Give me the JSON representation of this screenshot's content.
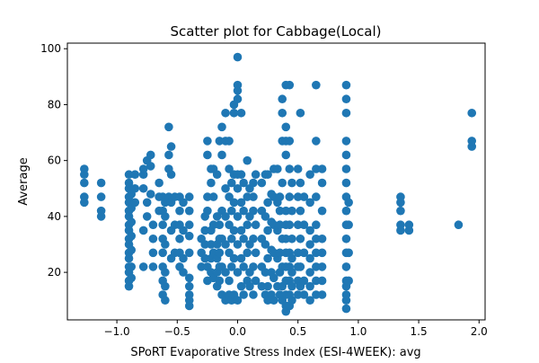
{
  "chart_data": {
    "type": "scatter",
    "title": "Scatter plot for Cabbage(Local)",
    "xlabel": "SPoRT Evaporative Stress Index (ESI-4WEEK): avg",
    "ylabel": "Average",
    "xlim": [
      -1.41,
      2.05
    ],
    "ylim": [
      3,
      102
    ],
    "xticks": [
      -1.0,
      -0.5,
      0.0,
      0.5,
      1.0,
      1.5,
      2.0
    ],
    "xtick_labels": [
      "−1.0",
      "−0.5",
      "0.0",
      "0.5",
      "1.0",
      "1.5",
      "2.0"
    ],
    "yticks": [
      20,
      40,
      60,
      80,
      100
    ],
    "ytick_labels": [
      "20",
      "40",
      "60",
      "80",
      "100"
    ],
    "grid": false,
    "legend": "none",
    "color": "#1f77b4",
    "columns": [
      {
        "x": -1.27,
        "y": [
          45,
          47,
          52,
          55,
          57
        ]
      },
      {
        "x": -1.13,
        "y": [
          40,
          42,
          47,
          52
        ]
      },
      {
        "x": -0.9,
        "y": [
          15,
          17,
          20,
          22,
          25,
          27,
          30,
          32,
          35,
          37,
          40,
          42,
          45,
          47,
          50,
          52,
          55
        ]
      },
      {
        "x": -0.88,
        "y": [
          18,
          22,
          28,
          33,
          38,
          43,
          48
        ]
      },
      {
        "x": -0.85,
        "y": [
          45,
          50,
          55
        ]
      },
      {
        "x": -0.78,
        "y": [
          22,
          35,
          50,
          55,
          57
        ]
      },
      {
        "x": -0.75,
        "y": [
          40,
          45,
          60
        ]
      },
      {
        "x": -0.72,
        "y": [
          48,
          58,
          62
        ]
      },
      {
        "x": -0.7,
        "y": [
          22,
          27,
          32,
          37
        ]
      },
      {
        "x": -0.65,
        "y": [
          42,
          47,
          52
        ]
      },
      {
        "x": -0.62,
        "y": [
          12,
          17,
          22,
          27,
          32,
          37,
          42,
          47
        ]
      },
      {
        "x": -0.6,
        "y": [
          10,
          15,
          20,
          30,
          40,
          45
        ]
      },
      {
        "x": -0.57,
        "y": [
          47,
          57,
          62,
          72
        ]
      },
      {
        "x": -0.55,
        "y": [
          25,
          35,
          45,
          55,
          65
        ]
      },
      {
        "x": -0.52,
        "y": [
          27,
          37,
          47
        ]
      },
      {
        "x": -0.48,
        "y": [
          22,
          27,
          32,
          37,
          42,
          47
        ]
      },
      {
        "x": -0.45,
        "y": [
          20,
          25,
          35,
          45
        ]
      },
      {
        "x": -0.4,
        "y": [
          8,
          10,
          12,
          15,
          18,
          27,
          33,
          37,
          42,
          47
        ]
      },
      {
        "x": -0.3,
        "y": [
          22,
          27,
          32
        ]
      },
      {
        "x": -0.27,
        "y": [
          25,
          30,
          35,
          40
        ]
      },
      {
        "x": -0.25,
        "y": [
          17,
          22,
          42,
          47,
          62,
          67
        ]
      },
      {
        "x": -0.22,
        "y": [
          20,
          25,
          30,
          35,
          52,
          57
        ]
      },
      {
        "x": -0.2,
        "y": [
          18,
          27,
          37,
          47,
          57
        ]
      },
      {
        "x": -0.17,
        "y": [
          15,
          20,
          25,
          30,
          40,
          55
        ]
      },
      {
        "x": -0.15,
        "y": [
          17,
          22,
          27,
          32,
          37,
          67
        ]
      },
      {
        "x": -0.13,
        "y": [
          12,
          22,
          32,
          42,
          62,
          72
        ]
      },
      {
        "x": -0.1,
        "y": [
          10,
          20,
          30,
          40,
          50,
          67,
          77
        ]
      },
      {
        "x": -0.07,
        "y": [
          12,
          17,
          27,
          37,
          47,
          57,
          67
        ]
      },
      {
        "x": -0.05,
        "y": [
          10,
          22,
          32,
          42,
          52
        ]
      },
      {
        "x": -0.03,
        "y": [
          12,
          25,
          35,
          45,
          55,
          77,
          80
        ]
      },
      {
        "x": 0.0,
        "y": [
          10,
          20,
          30,
          40,
          50,
          55,
          82,
          85,
          87,
          97
        ]
      },
      {
        "x": 0.03,
        "y": [
          15,
          25,
          35,
          45,
          55,
          77
        ]
      },
      {
        "x": 0.05,
        "y": [
          12,
          22,
          32,
          42,
          52
        ]
      },
      {
        "x": 0.08,
        "y": [
          17,
          27,
          37,
          47,
          60
        ]
      },
      {
        "x": 0.1,
        "y": [
          15,
          20,
          30,
          40,
          50
        ]
      },
      {
        "x": 0.13,
        "y": [
          12,
          22,
          32,
          42,
          47,
          52
        ]
      },
      {
        "x": 0.15,
        "y": [
          17,
          27,
          37,
          55
        ]
      },
      {
        "x": 0.2,
        "y": [
          15,
          22,
          32,
          42,
          52
        ]
      },
      {
        "x": 0.23,
        "y": [
          12,
          20,
          30,
          40,
          55
        ]
      },
      {
        "x": 0.25,
        "y": [
          10,
          15,
          25,
          35,
          45,
          55
        ]
      },
      {
        "x": 0.28,
        "y": [
          12,
          20,
          28,
          38,
          48
        ]
      },
      {
        "x": 0.3,
        "y": [
          10,
          18,
          27,
          37,
          47,
          57
        ]
      },
      {
        "x": 0.33,
        "y": [
          15,
          25,
          35,
          45,
          57
        ]
      },
      {
        "x": 0.35,
        "y": [
          12,
          20,
          27,
          37,
          42,
          47
        ]
      },
      {
        "x": 0.37,
        "y": [
          10,
          15,
          22,
          32,
          52,
          67,
          77,
          82
        ]
      },
      {
        "x": 0.4,
        "y": [
          6,
          8,
          12,
          17,
          22,
          27,
          32,
          37,
          42,
          62,
          67,
          72,
          87
        ]
      },
      {
        "x": 0.43,
        "y": [
          8,
          12,
          17,
          22,
          27,
          37,
          47,
          57,
          67,
          87
        ]
      },
      {
        "x": 0.45,
        "y": [
          10,
          15,
          20,
          25,
          32,
          42,
          52
        ]
      },
      {
        "x": 0.5,
        "y": [
          12,
          17,
          22,
          27,
          37,
          47,
          57
        ]
      },
      {
        "x": 0.52,
        "y": [
          15,
          22,
          32,
          42,
          52,
          77
        ]
      },
      {
        "x": 0.55,
        "y": [
          12,
          17,
          27,
          37,
          47
        ]
      },
      {
        "x": 0.6,
        "y": [
          10,
          15,
          20,
          25,
          30,
          35,
          45,
          55
        ]
      },
      {
        "x": 0.65,
        "y": [
          12,
          17,
          22,
          27,
          32,
          37,
          47,
          57,
          67,
          87
        ]
      },
      {
        "x": 0.7,
        "y": [
          12,
          17,
          22,
          27,
          32,
          42,
          52,
          57
        ]
      },
      {
        "x": 0.9,
        "y": [
          7,
          10,
          12,
          15,
          17,
          22,
          27,
          32,
          37,
          42,
          47,
          52,
          57,
          62,
          67,
          77,
          82,
          87
        ]
      },
      {
        "x": 0.92,
        "y": [
          17,
          27,
          37,
          45
        ]
      },
      {
        "x": 1.35,
        "y": [
          35,
          37,
          42,
          45,
          47
        ]
      },
      {
        "x": 1.42,
        "y": [
          35,
          37
        ]
      },
      {
        "x": 1.83,
        "y": [
          37
        ]
      },
      {
        "x": 1.94,
        "y": [
          65,
          67,
          77
        ]
      }
    ]
  }
}
